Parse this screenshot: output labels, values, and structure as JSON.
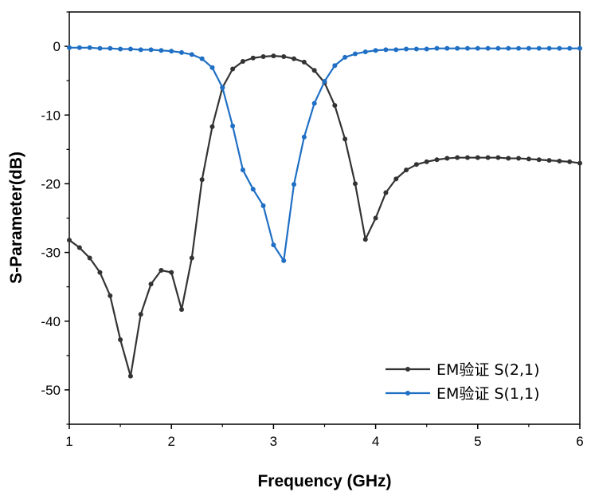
{
  "chart_data": {
    "type": "line",
    "title": "",
    "xlabel": "Frequency (GHz)",
    "ylabel": "S-Parameter(dB)",
    "xlim": [
      1,
      6
    ],
    "ylim": [
      -55,
      5
    ],
    "xticks": [
      1,
      2,
      3,
      4,
      5,
      6
    ],
    "yticks": [
      0,
      -10,
      -20,
      -30,
      -40,
      -50
    ],
    "grid": false,
    "legend_position": "bottom-right",
    "series": [
      {
        "name": "EM验证 S(2,1)",
        "color": "#333333",
        "x": [
          1.0,
          1.1,
          1.2,
          1.3,
          1.4,
          1.5,
          1.6,
          1.7,
          1.8,
          1.9,
          2.0,
          2.1,
          2.2,
          2.3,
          2.4,
          2.5,
          2.6,
          2.7,
          2.8,
          2.9,
          3.0,
          3.1,
          3.2,
          3.3,
          3.4,
          3.5,
          3.6,
          3.7,
          3.8,
          3.9,
          4.0,
          4.1,
          4.2,
          4.3,
          4.4,
          4.5,
          4.6,
          4.7,
          4.8,
          4.9,
          5.0,
          5.1,
          5.2,
          5.3,
          5.4,
          5.5,
          5.6,
          5.7,
          5.8,
          5.9,
          6.0
        ],
        "y": [
          -28.2,
          -29.3,
          -30.8,
          -32.9,
          -36.3,
          -42.7,
          -48.0,
          -39.0,
          -34.6,
          -32.6,
          -32.9,
          -38.3,
          -30.8,
          -19.4,
          -11.7,
          -6.0,
          -3.3,
          -2.2,
          -1.7,
          -1.5,
          -1.4,
          -1.5,
          -1.8,
          -2.3,
          -3.5,
          -5.3,
          -8.6,
          -13.5,
          -20.0,
          -28.1,
          -25.0,
          -21.3,
          -19.3,
          -18.0,
          -17.2,
          -16.8,
          -16.5,
          -16.3,
          -16.2,
          -16.2,
          -16.2,
          -16.2,
          -16.2,
          -16.3,
          -16.3,
          -16.4,
          -16.5,
          -16.6,
          -16.7,
          -16.8,
          -17.0
        ]
      },
      {
        "name": "EM验证 S(1,1)",
        "color": "#1f6fc4",
        "x": [
          1.0,
          1.1,
          1.2,
          1.3,
          1.4,
          1.5,
          1.6,
          1.7,
          1.8,
          1.9,
          2.0,
          2.1,
          2.2,
          2.3,
          2.4,
          2.5,
          2.6,
          2.7,
          2.8,
          2.9,
          3.0,
          3.1,
          3.2,
          3.3,
          3.4,
          3.5,
          3.6,
          3.7,
          3.8,
          3.9,
          4.0,
          4.1,
          4.2,
          4.3,
          4.4,
          4.5,
          4.6,
          4.7,
          4.8,
          4.9,
          5.0,
          5.1,
          5.2,
          5.3,
          5.4,
          5.5,
          5.6,
          5.7,
          5.8,
          5.9,
          6.0
        ],
        "y": [
          -0.2,
          -0.2,
          -0.2,
          -0.3,
          -0.3,
          -0.4,
          -0.4,
          -0.5,
          -0.5,
          -0.6,
          -0.7,
          -0.9,
          -1.2,
          -1.8,
          -3.1,
          -6.0,
          -11.6,
          -18.0,
          -20.8,
          -23.2,
          -28.9,
          -31.2,
          -20.1,
          -13.2,
          -8.3,
          -5.1,
          -2.8,
          -1.6,
          -1.1,
          -0.8,
          -0.6,
          -0.5,
          -0.5,
          -0.4,
          -0.4,
          -0.4,
          -0.3,
          -0.3,
          -0.3,
          -0.3,
          -0.3,
          -0.3,
          -0.3,
          -0.3,
          -0.3,
          -0.3,
          -0.3,
          -0.3,
          -0.3,
          -0.3,
          -0.3
        ]
      }
    ]
  }
}
